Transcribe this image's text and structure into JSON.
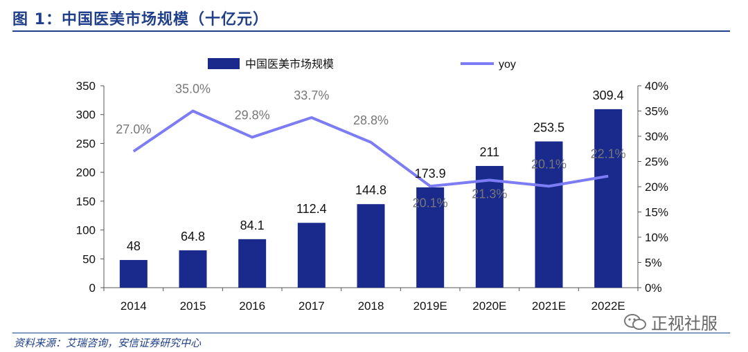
{
  "figure": {
    "title": "图 1：中国医美市场规模（十亿元）",
    "source": "资料来源：艾瑞咨询，安信证券研究中心",
    "watermark": "正视社服"
  },
  "colors": {
    "bar": "#1a2a8c",
    "line": "#7c7cf5",
    "title": "#1f3f8a",
    "yoy_label": "#777777"
  },
  "chart_data": {
    "type": "bar",
    "categories": [
      "2014",
      "2015",
      "2016",
      "2017",
      "2018",
      "2019E",
      "2020E",
      "2021E",
      "2022E"
    ],
    "series": [
      {
        "name": "中国医美市场规模",
        "type": "bar",
        "axis": "left",
        "values": [
          48,
          64.8,
          84.1,
          112.4,
          144.8,
          173.9,
          211,
          253.5,
          309.4
        ],
        "labels": [
          "48",
          "64.8",
          "84.1",
          "112.4",
          "144.8",
          "173.9",
          "211",
          "253.5",
          "309.4"
        ]
      },
      {
        "name": "yoy",
        "type": "line",
        "axis": "right",
        "values": [
          27.0,
          35.0,
          29.8,
          33.7,
          28.8,
          20.1,
          21.3,
          20.1,
          22.1
        ],
        "labels": [
          "27.0%",
          "35.0%",
          "29.8%",
          "33.7%",
          "28.8%",
          "20.1%",
          "21.3%",
          "20.1%",
          "22.1%"
        ]
      }
    ],
    "ylim": [
      0,
      350
    ],
    "y_ticks": [
      "0",
      "50",
      "100",
      "150",
      "200",
      "250",
      "300",
      "350"
    ],
    "y2lim": [
      0,
      40
    ],
    "y2_ticks": [
      "0%",
      "5%",
      "10%",
      "15%",
      "20%",
      "25%",
      "30%",
      "35%",
      "40%"
    ],
    "legend_position": "top",
    "grid": false
  }
}
